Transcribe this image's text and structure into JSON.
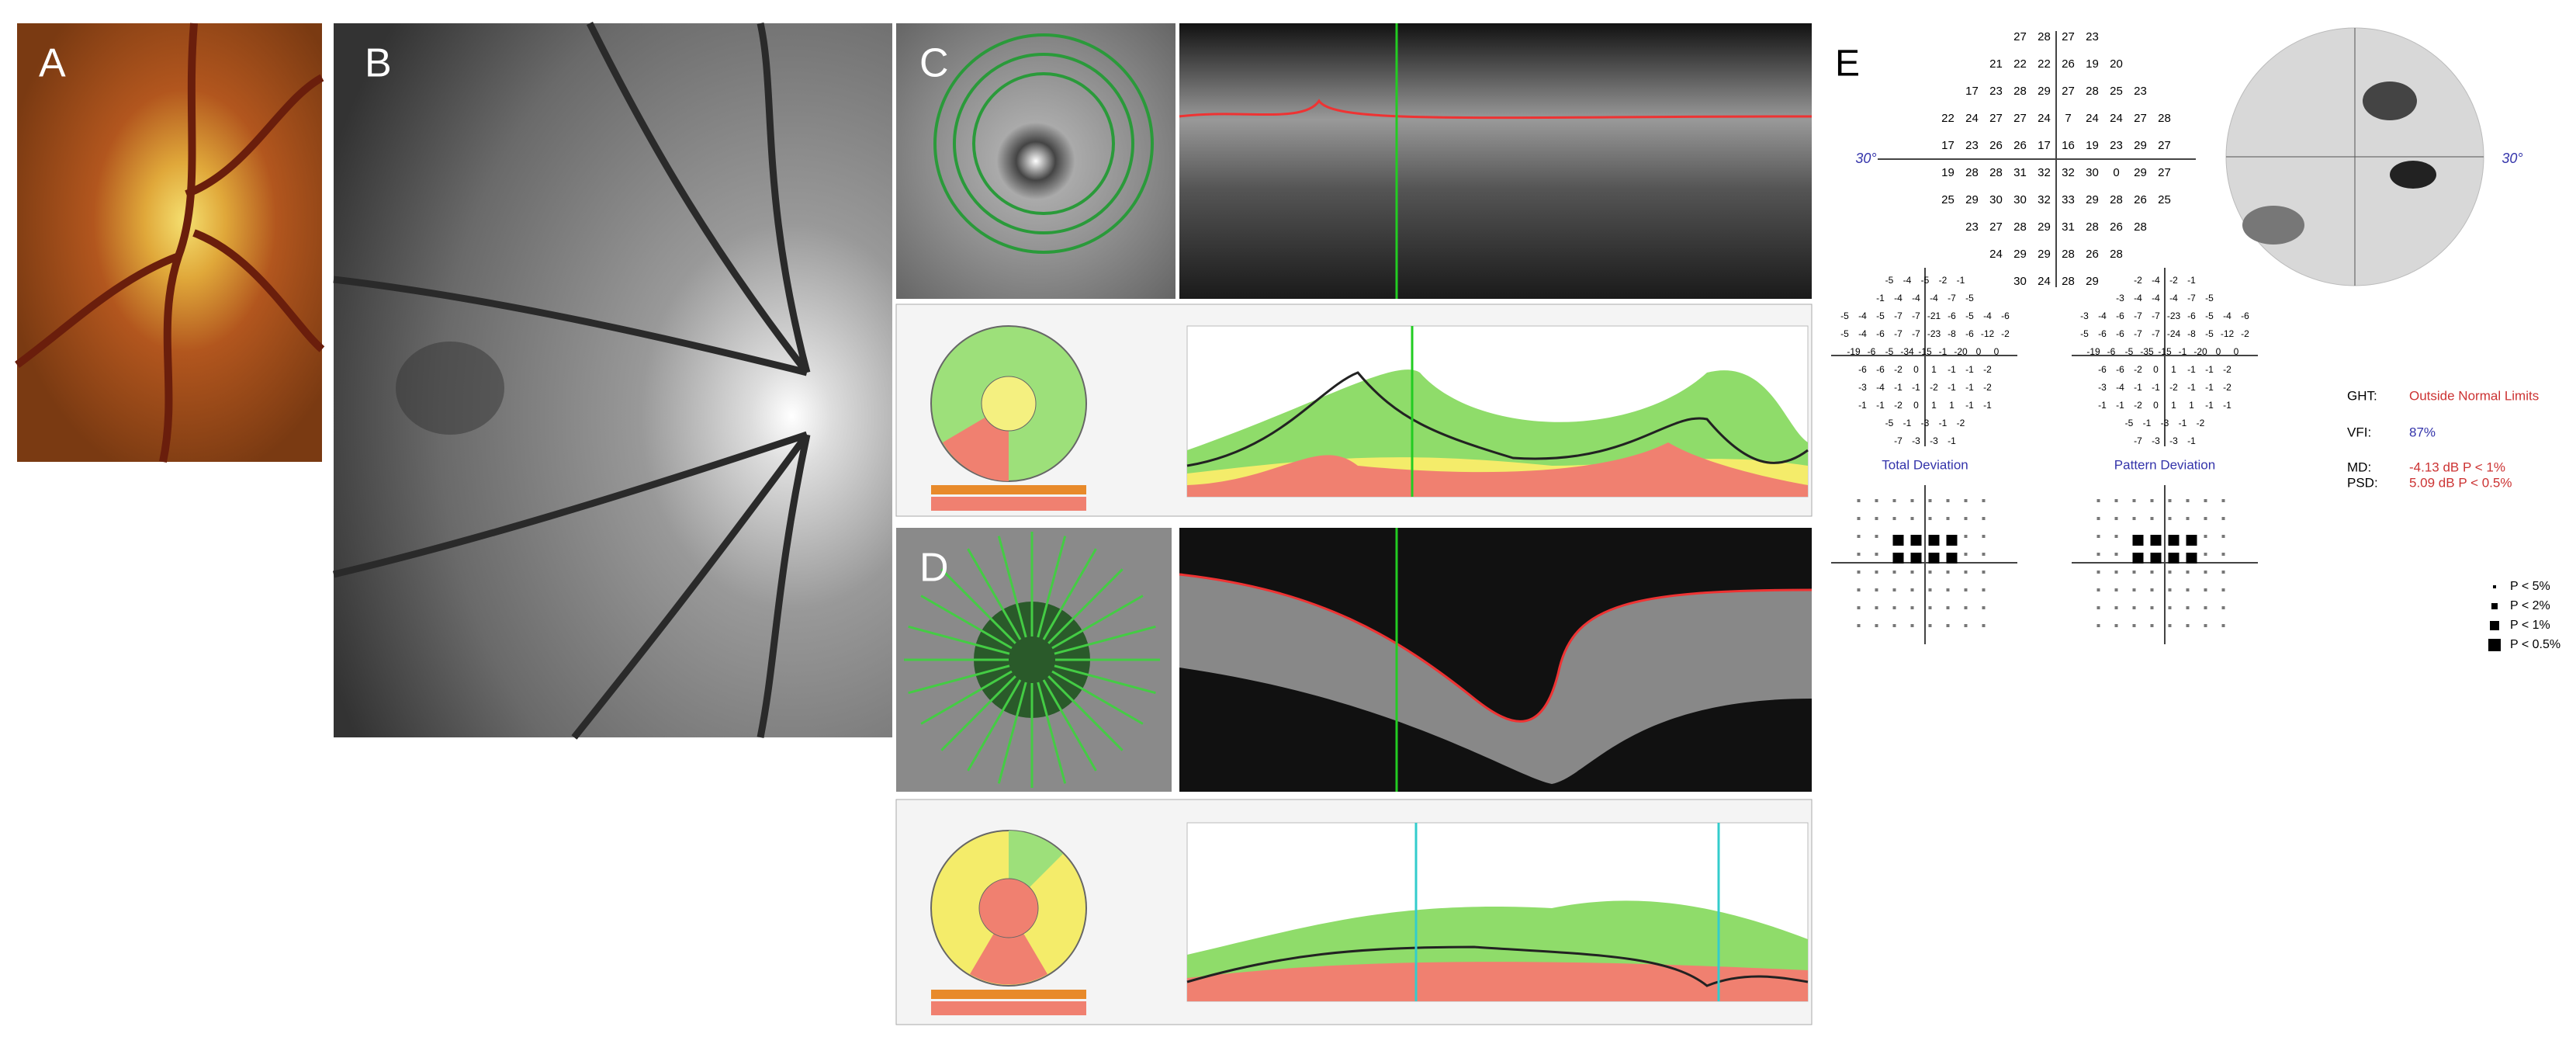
{
  "panels": {
    "a": "A",
    "b": "B",
    "c": "C",
    "d": "D",
    "e": "E"
  },
  "visual_field": {
    "axis_left": "30°",
    "axis_right": "30°",
    "threshold_rows": [
      [
        27,
        28,
        27,
        23
      ],
      [
        21,
        22,
        22,
        26,
        19,
        20
      ],
      [
        17,
        23,
        28,
        29,
        27,
        28,
        25,
        23
      ],
      [
        22,
        24,
        27,
        27,
        24,
        7,
        24,
        24,
        27,
        28
      ],
      [
        17,
        23,
        26,
        26,
        17,
        16,
        19,
        23,
        29,
        27
      ],
      [
        19,
        28,
        28,
        31,
        32,
        32,
        30,
        0,
        29,
        27
      ],
      [
        25,
        29,
        30,
        30,
        32,
        33,
        29,
        28,
        26,
        25
      ],
      [
        23,
        27,
        28,
        29,
        31,
        28,
        26,
        28
      ],
      [
        24,
        29,
        29,
        28,
        26,
        28
      ],
      [
        30,
        24,
        28,
        29
      ]
    ],
    "total_deviation_title": "Total Deviation",
    "total_deviation_rows": [
      [
        -5,
        -4,
        -5,
        -2,
        -1
      ],
      [
        -1,
        -4,
        -4,
        -4,
        -7,
        -5
      ],
      [
        -5,
        -4,
        -5,
        -7,
        -7,
        -21,
        -6,
        -5,
        -4,
        -6
      ],
      [
        -5,
        -4,
        -6,
        -7,
        -7,
        -23,
        -8,
        -6,
        -12,
        -2
      ],
      [
        -19,
        -6,
        -5,
        -34,
        -15,
        -1,
        -20,
        0,
        0
      ],
      [
        -6,
        -6,
        -2,
        0,
        1,
        -1,
        -1,
        -2
      ],
      [
        -3,
        -4,
        -1,
        -1,
        -2,
        -1,
        -1,
        -2
      ],
      [
        -1,
        -1,
        -2,
        0,
        1,
        1,
        -1,
        -1
      ],
      [
        -5,
        -1,
        -3,
        -1,
        -2
      ],
      [
        -7,
        -3,
        -3,
        -1
      ]
    ],
    "pattern_deviation_title": "Pattern Deviation",
    "pattern_deviation_rows": [
      [
        -2,
        -4,
        -2,
        -1
      ],
      [
        -3,
        -4,
        -4,
        -4,
        -7,
        -5
      ],
      [
        -3,
        -4,
        -6,
        -7,
        -7,
        -23,
        -6,
        -5,
        -4,
        -6
      ],
      [
        -5,
        -6,
        -6,
        -7,
        -7,
        -24,
        -8,
        -5,
        -12,
        -2
      ],
      [
        -19,
        -6,
        -5,
        -35,
        -15,
        -1,
        -20,
        0,
        0
      ],
      [
        -6,
        -6,
        -2,
        0,
        1,
        -1,
        -1,
        -2
      ],
      [
        -3,
        -4,
        -1,
        -1,
        -2,
        -1,
        -1,
        -2
      ],
      [
        -1,
        -1,
        -2,
        0,
        1,
        1,
        -1,
        -1
      ],
      [
        -5,
        -1,
        -3,
        -1,
        -2
      ],
      [
        -7,
        -3,
        -3,
        -1
      ]
    ],
    "ght_label": "GHT:",
    "ght_value": "Outside Normal Limits",
    "vfi_label": "VFI:",
    "vfi_value": "87%",
    "md_label": "MD:",
    "md_value": "-4.13 dB P < 1%",
    "psd_label": "PSD:",
    "psd_value": "5.09 dB P < 0.5%",
    "legend": [
      "P < 5%",
      "P < 2%",
      "P < 1%",
      "P < 0.5%"
    ]
  }
}
